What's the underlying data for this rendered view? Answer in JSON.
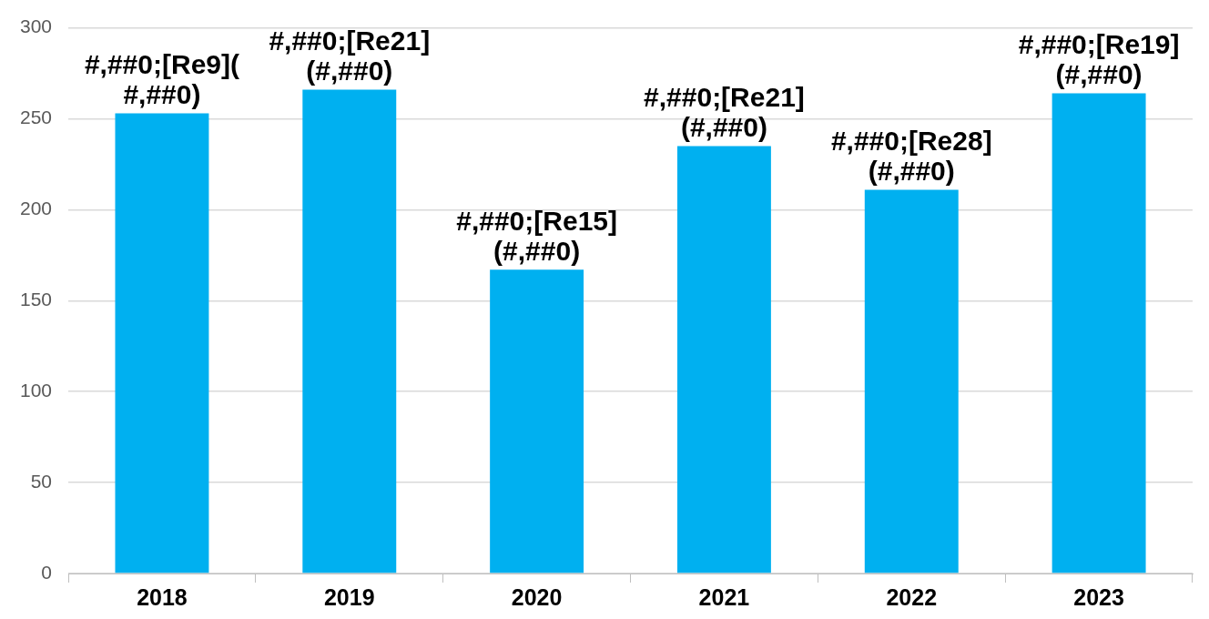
{
  "chart_data": {
    "type": "bar",
    "categories": [
      "2018",
      "2019",
      "2020",
      "2021",
      "2022",
      "2023"
    ],
    "values": [
      253,
      266,
      167,
      235,
      211,
      264
    ],
    "value_labels": [
      "#,##0;[Re9](#,##0)",
      "#,##0;[Re21](#,##0)",
      "#,##0;[Re15](#,##0)",
      "#,##0;[Re21](#,##0)",
      "#,##0;[Re28](#,##0)",
      "#,##0;[Re19](#,##0)"
    ],
    "color": "#00b0f0",
    "ylim": [
      0,
      300
    ],
    "yticks": [
      0,
      50,
      100,
      150,
      200,
      250,
      300
    ],
    "grid": "y",
    "legend": false
  }
}
